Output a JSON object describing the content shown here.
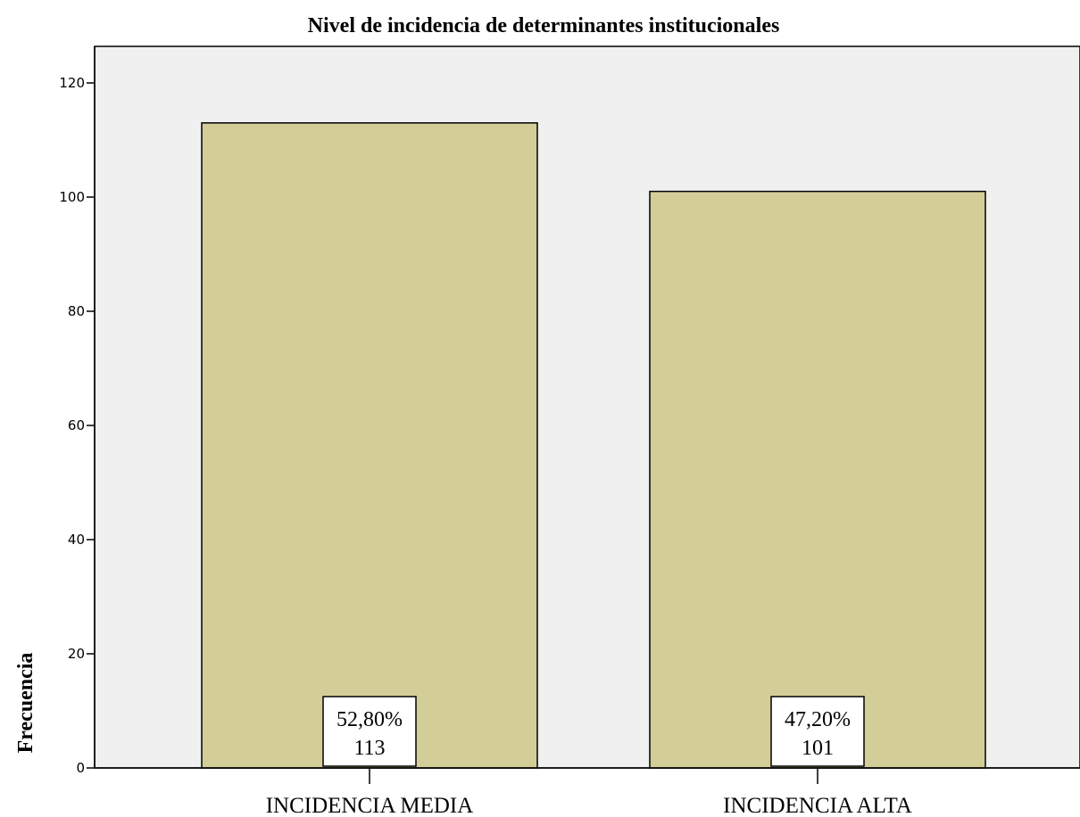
{
  "chart_data": {
    "type": "bar",
    "title": "Nivel de incidencia de determinantes institucionales",
    "xlabel": "",
    "ylabel": "Frecuencia",
    "categories": [
      "INCIDENCIA MEDIA",
      "INCIDENCIA ALTA"
    ],
    "values": [
      113,
      101
    ],
    "data_labels": [
      {
        "percent": "52,80%",
        "count": "113"
      },
      {
        "percent": "47,20%",
        "count": "101"
      }
    ],
    "ylim": [
      0,
      125
    ],
    "yticks": [
      0,
      20,
      40,
      60,
      80,
      100,
      120
    ],
    "grid": false,
    "legend": "none",
    "colors": {
      "bar_fill": "#d3ce98",
      "bar_stroke": "#000000",
      "plot_background": "#f0f0f0",
      "label_box": "#ffffff"
    }
  }
}
